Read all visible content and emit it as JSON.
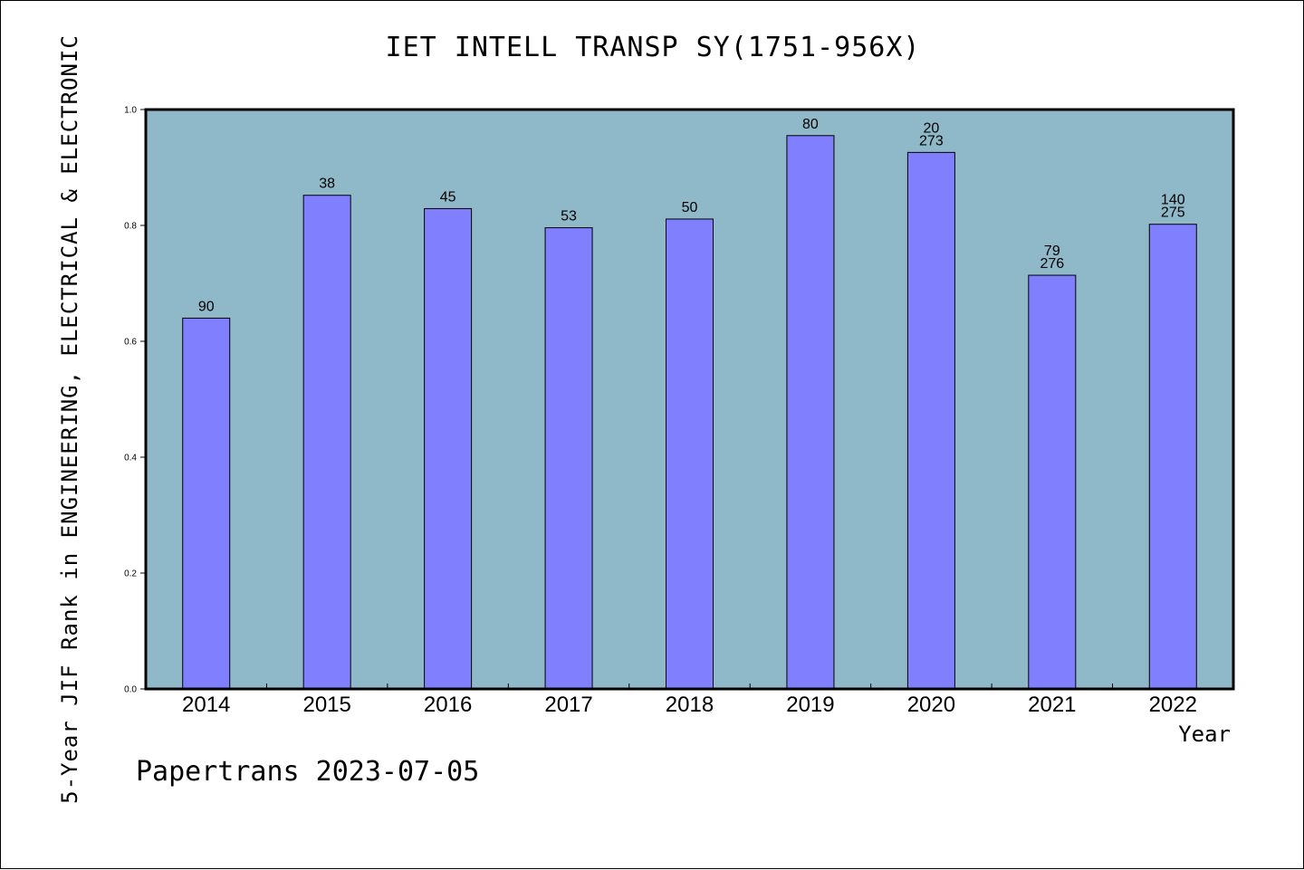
{
  "chart_data": {
    "type": "bar",
    "title": "IET INTELL TRANSP SY(1751-956X)",
    "xlabel": "Year",
    "ylabel": "5-Year JIF Rank in ENGINEERING, ELECTRICAL & ELECTRONIC",
    "ylim": [
      0,
      1.0
    ],
    "yticks": [
      "0.0",
      "0.2",
      "0.4",
      "0.6",
      "0.8",
      "1.0"
    ],
    "categories": [
      "2014",
      "2015",
      "2016",
      "2017",
      "2018",
      "2019",
      "2020",
      "2021",
      "2022"
    ],
    "values": [
      0.64,
      0.852,
      0.829,
      0.796,
      0.811,
      0.955,
      0.926,
      0.714,
      0.802
    ],
    "bar_labels": [
      [
        "90"
      ],
      [
        "38"
      ],
      [
        "45"
      ],
      [
        "53"
      ],
      [
        "50"
      ],
      [
        "80"
      ],
      [
        "20",
        "273"
      ],
      [
        "79",
        "276"
      ],
      [
        "140",
        "275"
      ]
    ],
    "grid": false,
    "plot_background": "#8fb8c8",
    "bar_color": "#8080ff"
  },
  "footer": "Papertrans 2023-07-05"
}
